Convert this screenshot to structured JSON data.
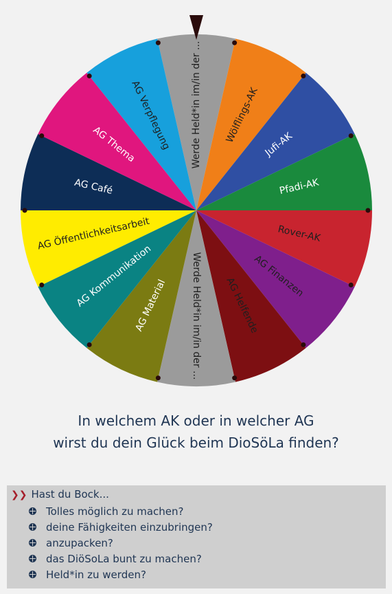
{
  "wheel": {
    "segments": [
      {
        "label": "Werde Held*in im/in der ...",
        "color": "#9b9b9b",
        "text_color": "#1f1f1f"
      },
      {
        "label": "Wölflings-AK",
        "color": "#f07f18",
        "text_color": "#1f1f1f"
      },
      {
        "label": "Jufi-AK",
        "color": "#2f4fa3",
        "text_color": "#ffffff"
      },
      {
        "label": "Pfadi-AK",
        "color": "#1a8a3d",
        "text_color": "#ffffff"
      },
      {
        "label": "Rover-AK",
        "color": "#c8242f",
        "text_color": "#1f1f1f"
      },
      {
        "label": "AG Finanzen",
        "color": "#7f1f8c",
        "text_color": "#1f1f1f"
      },
      {
        "label": "AG Helfende",
        "color": "#7d0f12",
        "text_color": "#1f1f1f"
      },
      {
        "label": "Werde Held*in im/in der ...",
        "color": "#9b9b9b",
        "text_color": "#1f1f1f"
      },
      {
        "label": "AG Material",
        "color": "#7b7b12",
        "text_color": "#ffffff"
      },
      {
        "label": "AG Kommunikation",
        "color": "#0a8383",
        "text_color": "#ffffff"
      },
      {
        "label": "AG Öffentlichkeitsarbeit",
        "color": "#ffec00",
        "text_color": "#1f1f1f"
      },
      {
        "label": "AG Café",
        "color": "#0d2d56",
        "text_color": "#ffffff"
      },
      {
        "label": "AG Thema",
        "color": "#e0167e",
        "text_color": "#ffffff"
      },
      {
        "label": "AG Verpflegung",
        "color": "#17a0dc",
        "text_color": "#1f1f1f"
      }
    ],
    "pointer_color": "#2a0b0b"
  },
  "question": {
    "line1": "In welchem AK oder in welcher AG",
    "line2": "wirst du dein Glück beim DioSöLa finden?"
  },
  "bock": {
    "title": "Hast du Bock...",
    "items": [
      "Tolles möglich zu machen?",
      "deine Fähigkeiten einzubringen?",
      "anzupacken?",
      "das DiöSoLa bunt zu machen?",
      "Held*in zu werden?"
    ]
  }
}
